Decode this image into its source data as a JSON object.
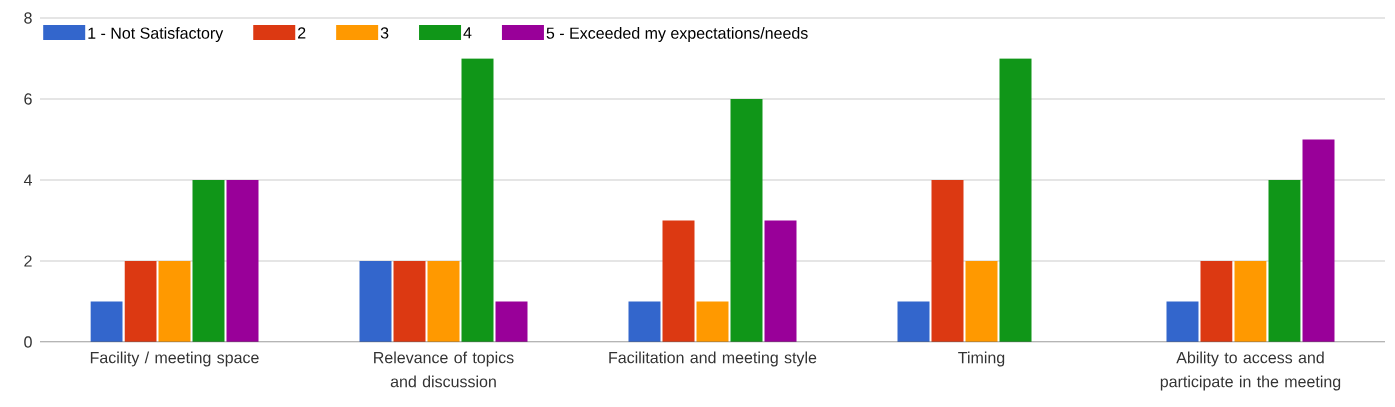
{
  "chart_data": {
    "type": "bar",
    "categories": [
      "Facility / meeting space",
      "Relevance of topics and discussion",
      "Facilitation and meeting style",
      "Timing",
      "Ability to access and participate in the meeting"
    ],
    "series": [
      {
        "name": "1 - Not Satisfactory",
        "color": "#3366cc",
        "values": [
          1,
          2,
          1,
          1,
          1
        ]
      },
      {
        "name": "2",
        "color": "#dc3912",
        "values": [
          2,
          2,
          3,
          4,
          2
        ]
      },
      {
        "name": "3",
        "color": "#ff9900",
        "values": [
          2,
          2,
          1,
          2,
          2
        ]
      },
      {
        "name": "4",
        "color": "#109618",
        "values": [
          4,
          7,
          6,
          7,
          4
        ]
      },
      {
        "name": "5 - Exceeded my expectations/needs",
        "color": "#990099",
        "values": [
          4,
          1,
          3,
          0,
          5
        ]
      }
    ],
    "ylim": [
      0,
      8
    ],
    "yticks": [
      0,
      2,
      4,
      6,
      8
    ],
    "grid": "y",
    "legend": "top left"
  }
}
